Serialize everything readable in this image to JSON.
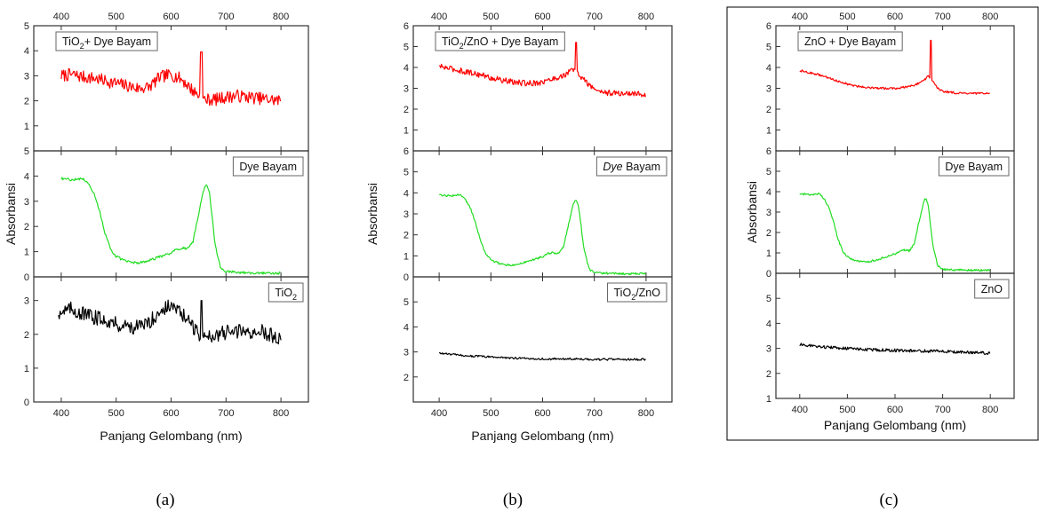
{
  "chart_data": [
    {
      "type": "line",
      "caption": "(a)",
      "xlabel": "Panjang Gelombang (nm)",
      "ylabel": "Absorbansi",
      "xlim": [
        350,
        850
      ],
      "xticks": [
        "400",
        "500",
        "600",
        "700",
        "800"
      ],
      "subplots": [
        {
          "label_main": "TiO",
          "label_sub": "2",
          "label_tail": "+ Dye Bayam",
          "ylim": [
            0,
            5
          ],
          "yticks": [
            "1",
            "2",
            "3",
            "4",
            "5"
          ],
          "color": "#ff0000",
          "noise": 0.25,
          "spike": [
            655,
            3.95
          ],
          "series": [
            {
              "x": [
                400,
                420,
                440,
                460,
                480,
                500,
                520,
                540,
                560,
                580,
                600,
                620,
                640,
                660,
                680,
                700,
                720,
                740,
                760,
                780,
                800
              ],
              "y": [
                3.0,
                3.05,
                2.95,
                2.9,
                2.8,
                2.7,
                2.6,
                2.5,
                2.55,
                2.95,
                3.05,
                2.85,
                2.4,
                2.05,
                2.05,
                2.15,
                2.2,
                2.15,
                2.1,
                2.05,
                2.0
              ]
            }
          ]
        },
        {
          "label_main": "Dye Bayam",
          "label_sub": "",
          "label_tail": "",
          "ylim": [
            0,
            5
          ],
          "yticks": [
            "0",
            "1",
            "2",
            "3",
            "4",
            "5"
          ],
          "color": "#22dd22",
          "noise": 0.05,
          "series": [
            {
              "x": [
                400,
                420,
                440,
                450,
                460,
                470,
                480,
                490,
                500,
                520,
                540,
                560,
                580,
                600,
                610,
                620,
                630,
                640,
                650,
                660,
                665,
                670,
                680,
                690,
                700,
                750,
                800
              ],
              "y": [
                3.9,
                3.85,
                3.9,
                3.7,
                3.3,
                2.6,
                1.7,
                1.1,
                0.8,
                0.6,
                0.55,
                0.65,
                0.8,
                0.95,
                1.1,
                1.15,
                1.1,
                1.4,
                2.5,
                3.5,
                3.7,
                3.3,
                1.3,
                0.35,
                0.2,
                0.15,
                0.15
              ]
            }
          ]
        },
        {
          "label_main": "TiO",
          "label_sub": "2",
          "label_tail": "",
          "ylim": [
            0,
            3.7
          ],
          "yticks": [
            "0",
            "1",
            "2",
            "3"
          ],
          "color": "#000000",
          "noise": 0.22,
          "spike": [
            655,
            3.0
          ],
          "series": [
            {
              "x": [
                395,
                420,
                440,
                460,
                480,
                500,
                520,
                540,
                560,
                580,
                600,
                620,
                640,
                660,
                680,
                700,
                720,
                740,
                760,
                780,
                800
              ],
              "y": [
                2.65,
                2.75,
                2.6,
                2.5,
                2.45,
                2.3,
                2.25,
                2.2,
                2.35,
                2.7,
                2.85,
                2.6,
                2.2,
                1.9,
                2.0,
                2.05,
                2.1,
                2.05,
                2.1,
                2.0,
                1.85
              ]
            }
          ]
        }
      ]
    },
    {
      "type": "line",
      "caption": "(b)",
      "xlabel": "Panjang Gelombang (nm)",
      "ylabel": "Absorbansi",
      "xlim": [
        350,
        850
      ],
      "xticks": [
        "400",
        "500",
        "600",
        "700",
        "800"
      ],
      "subplots": [
        {
          "label_main": "TiO",
          "label_sub": "2",
          "label_tail": "/ZnO + Dye Bayam",
          "ylim": [
            0,
            6
          ],
          "yticks": [
            "1",
            "2",
            "3",
            "4",
            "5",
            "6"
          ],
          "color": "#ff0000",
          "noise": 0.14,
          "spike": [
            665,
            5.2
          ],
          "series": [
            {
              "x": [
                400,
                420,
                440,
                460,
                480,
                500,
                520,
                540,
                560,
                580,
                600,
                620,
                640,
                660,
                680,
                700,
                720,
                740,
                760,
                780,
                800
              ],
              "y": [
                4.05,
                3.95,
                3.85,
                3.75,
                3.65,
                3.5,
                3.4,
                3.3,
                3.25,
                3.25,
                3.3,
                3.45,
                3.6,
                3.9,
                3.4,
                2.95,
                2.8,
                2.75,
                2.75,
                2.75,
                2.7
              ]
            }
          ]
        },
        {
          "label_main": "Dye",
          "label_sub": "",
          "label_tail": " Bayam",
          "label_italic": true,
          "ylim": [
            0,
            6
          ],
          "yticks": [
            "0",
            "1",
            "2",
            "3",
            "4",
            "5",
            "6"
          ],
          "color": "#22dd22",
          "noise": 0.05,
          "series": [
            {
              "x": [
                400,
                420,
                440,
                450,
                460,
                470,
                480,
                490,
                500,
                520,
                540,
                560,
                580,
                600,
                610,
                620,
                630,
                640,
                650,
                660,
                665,
                670,
                680,
                690,
                700,
                750,
                800
              ],
              "y": [
                3.9,
                3.85,
                3.9,
                3.7,
                3.3,
                2.6,
                1.7,
                1.1,
                0.8,
                0.6,
                0.55,
                0.65,
                0.8,
                0.95,
                1.1,
                1.15,
                1.1,
                1.4,
                2.5,
                3.5,
                3.7,
                3.3,
                1.3,
                0.35,
                0.2,
                0.15,
                0.15
              ]
            }
          ]
        },
        {
          "label_main": "TiO",
          "label_sub": "2",
          "label_tail": "/ZnO",
          "ylim": [
            1,
            6
          ],
          "yticks": [
            "2",
            "3",
            "4",
            "5"
          ],
          "color": "#000000",
          "noise": 0.04,
          "series": [
            {
              "x": [
                400,
                450,
                500,
                550,
                600,
                650,
                700,
                750,
                800
              ],
              "y": [
                2.95,
                2.85,
                2.8,
                2.75,
                2.72,
                2.72,
                2.7,
                2.7,
                2.7
              ]
            }
          ]
        }
      ]
    },
    {
      "type": "line",
      "caption": "(c)",
      "xlabel": "Panjang Gelombang (nm)",
      "ylabel": "Absorbansi",
      "xlim": [
        350,
        850
      ],
      "xticks": [
        "400",
        "500",
        "600",
        "700",
        "800"
      ],
      "subplots": [
        {
          "label_main": "ZnO + Dye Bayam",
          "label_sub": "",
          "label_tail": "",
          "ylim": [
            0,
            6
          ],
          "yticks": [
            "1",
            "2",
            "3",
            "4",
            "5",
            "6"
          ],
          "color": "#ff0000",
          "noise": 0.05,
          "spike": [
            675,
            5.3
          ],
          "series": [
            {
              "x": [
                400,
                420,
                440,
                460,
                480,
                500,
                520,
                540,
                560,
                580,
                600,
                620,
                640,
                660,
                670,
                680,
                690,
                700,
                720,
                740,
                760,
                780,
                800
              ],
              "y": [
                3.85,
                3.75,
                3.65,
                3.5,
                3.35,
                3.2,
                3.1,
                3.05,
                3.0,
                3.0,
                3.0,
                3.05,
                3.15,
                3.35,
                3.6,
                3.3,
                3.0,
                2.85,
                2.8,
                2.75,
                2.75,
                2.75,
                2.75
              ]
            }
          ]
        },
        {
          "label_main": "Dye Bayam",
          "label_sub": "",
          "label_tail": "",
          "ylim": [
            0,
            6
          ],
          "yticks": [
            "0",
            "1",
            "2",
            "3",
            "4",
            "5",
            "6"
          ],
          "color": "#22dd22",
          "noise": 0.05,
          "series": [
            {
              "x": [
                400,
                420,
                440,
                450,
                460,
                470,
                480,
                490,
                500,
                520,
                540,
                560,
                580,
                600,
                610,
                620,
                630,
                640,
                650,
                660,
                665,
                670,
                680,
                690,
                700,
                750,
                800
              ],
              "y": [
                3.9,
                3.85,
                3.9,
                3.7,
                3.3,
                2.6,
                1.7,
                1.1,
                0.8,
                0.6,
                0.55,
                0.65,
                0.8,
                0.95,
                1.1,
                1.15,
                1.1,
                1.4,
                2.5,
                3.5,
                3.7,
                3.3,
                1.3,
                0.35,
                0.2,
                0.15,
                0.15
              ]
            }
          ]
        },
        {
          "label_main": "ZnO",
          "label_sub": "",
          "label_tail": "",
          "ylim": [
            1,
            6
          ],
          "yticks": [
            "1",
            "2",
            "3",
            "4",
            "5"
          ],
          "color": "#000000",
          "noise": 0.06,
          "series": [
            {
              "x": [
                400,
                450,
                500,
                550,
                600,
                650,
                700,
                750,
                800
              ],
              "y": [
                3.15,
                3.05,
                3.0,
                2.95,
                2.92,
                2.9,
                2.88,
                2.85,
                2.8
              ]
            }
          ]
        }
      ]
    }
  ]
}
